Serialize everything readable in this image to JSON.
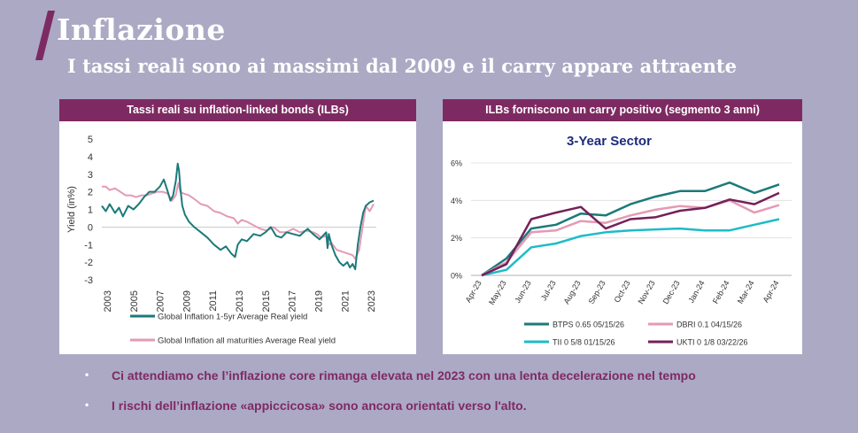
{
  "header": {
    "title": "Inflazione",
    "subtitle": "I tassi reali sono ai massimi dal 2009 e il carry appare attraente"
  },
  "colors": {
    "background": "#aca9c4",
    "accent": "#7e2a62",
    "teal": "#1b7a7a",
    "pink": "#e59ab5",
    "cyan": "#1cbcc8",
    "purple": "#74205a"
  },
  "left_panel": {
    "header": "Tassi reali su inflation-linked bonds (ILBs)"
  },
  "right_panel": {
    "header": "ILBs forniscono un carry positivo (segmento 3 anni)"
  },
  "chart_data": [
    {
      "type": "line",
      "title": "",
      "xlabel": "",
      "ylabel": "Yield (in%)",
      "xlim": [
        2003,
        2023.8
      ],
      "ylim": [
        -3,
        5
      ],
      "xticks": [
        "2003",
        "2005",
        "2007",
        "2009",
        "2011",
        "2013",
        "2015",
        "2017",
        "2019",
        "2021",
        "2023"
      ],
      "yticks": [
        "5",
        "4",
        "3",
        "2",
        "1",
        "0",
        "-1",
        "-2",
        "-3"
      ],
      "legend": "bottom",
      "series": [
        {
          "name": "Global Inflation 1-5yr Average Real yield",
          "color": "#1b7a7a",
          "x": [
            2003,
            2003.3,
            2003.6,
            2004,
            2004.3,
            2004.6,
            2005,
            2005.4,
            2005.8,
            2006.2,
            2006.6,
            2007,
            2007.4,
            2007.7,
            2008,
            2008.2,
            2008.4,
            2008.6,
            2008.75,
            2008.85,
            2008.95,
            2009.1,
            2009.3,
            2009.6,
            2010,
            2010.5,
            2011,
            2011.5,
            2012,
            2012.4,
            2012.8,
            2013.1,
            2013.3,
            2013.6,
            2014,
            2014.5,
            2015,
            2015.4,
            2015.8,
            2016.2,
            2016.6,
            2017,
            2017.5,
            2018,
            2018.3,
            2018.6,
            2019,
            2019.5,
            2020,
            2020.1,
            2020.2,
            2020.4,
            2020.7,
            2021,
            2021.3,
            2021.6,
            2021.8,
            2022,
            2022.2,
            2022.4,
            2022.6,
            2022.8,
            2023,
            2023.3,
            2023.6
          ],
          "y": [
            1.2,
            0.9,
            1.3,
            0.8,
            1.1,
            0.6,
            1.2,
            1.0,
            1.3,
            1.7,
            2.0,
            2.0,
            2.3,
            2.7,
            2.0,
            1.5,
            1.8,
            2.6,
            3.6,
            3.2,
            2.2,
            1.2,
            0.7,
            0.3,
            0.0,
            -0.3,
            -0.6,
            -1.0,
            -1.3,
            -1.1,
            -1.5,
            -1.7,
            -1.0,
            -0.7,
            -0.8,
            -0.4,
            -0.5,
            -0.3,
            0.0,
            -0.5,
            -0.6,
            -0.3,
            -0.4,
            -0.5,
            -0.3,
            -0.1,
            -0.4,
            -0.7,
            -0.3,
            -1.2,
            -0.4,
            -1.0,
            -1.6,
            -2.0,
            -2.2,
            -2.0,
            -2.3,
            -2.1,
            -2.4,
            -1.0,
            0.0,
            0.8,
            1.2,
            1.4,
            1.5
          ]
        },
        {
          "name": "Global Inflation all maturities Average Real yield",
          "color": "#e59ab5",
          "x": [
            2003,
            2003.3,
            2003.6,
            2004,
            2004.4,
            2004.8,
            2005.2,
            2005.6,
            2006,
            2006.4,
            2006.8,
            2007.2,
            2007.6,
            2008,
            2008.3,
            2008.6,
            2008.8,
            2008.95,
            2009.2,
            2009.6,
            2010,
            2010.5,
            2011,
            2011.5,
            2012,
            2012.5,
            2013,
            2013.3,
            2013.6,
            2014,
            2014.5,
            2015,
            2015.5,
            2016,
            2016.5,
            2017,
            2017.5,
            2018,
            2018.5,
            2019,
            2019.3,
            2019.6,
            2020,
            2020.2,
            2020.4,
            2020.8,
            2021.2,
            2021.6,
            2022,
            2022.2,
            2022.5,
            2022.8,
            2023,
            2023.3,
            2023.6
          ],
          "y": [
            2.3,
            2.3,
            2.1,
            2.2,
            2.0,
            1.8,
            1.8,
            1.7,
            1.8,
            1.8,
            1.9,
            2.0,
            2.0,
            1.9,
            1.5,
            1.8,
            2.5,
            2.0,
            1.9,
            1.8,
            1.6,
            1.3,
            1.2,
            0.9,
            0.8,
            0.6,
            0.5,
            0.2,
            0.4,
            0.3,
            0.1,
            -0.1,
            -0.2,
            0.0,
            -0.3,
            -0.3,
            -0.1,
            -0.3,
            -0.2,
            -0.3,
            -0.4,
            -0.6,
            -0.5,
            -1.0,
            -0.9,
            -1.3,
            -1.4,
            -1.5,
            -1.6,
            -1.8,
            -1.3,
            0.2,
            1.2,
            0.9,
            1.3
          ]
        }
      ]
    },
    {
      "type": "line",
      "title": "3-Year Sector",
      "xlabel": "",
      "ylabel": "",
      "ylim": [
        0,
        6
      ],
      "categories": [
        "Apr-23",
        "May-23",
        "Jun-23",
        "Jul-23",
        "Aug-23",
        "Sep-23",
        "Oct-23",
        "Nov-23",
        "Dec-23",
        "Jan-24",
        "Feb-24",
        "Mar-24",
        "Apr-24"
      ],
      "yticks": [
        "0%",
        "2%",
        "4%",
        "6%"
      ],
      "legend": "bottom",
      "series": [
        {
          "name": "BTPS 0.65 05/15/26",
          "color": "#1b7a7a",
          "values": [
            0,
            0.9,
            2.5,
            2.7,
            3.3,
            3.2,
            3.8,
            4.2,
            4.5,
            4.5,
            4.95,
            4.4,
            4.85
          ]
        },
        {
          "name": "DBRI 0.1 04/15/26",
          "color": "#e59ab5",
          "values": [
            0,
            0.7,
            2.3,
            2.4,
            2.9,
            2.8,
            3.2,
            3.5,
            3.7,
            3.6,
            4.0,
            3.35,
            3.75
          ]
        },
        {
          "name": "TII 0 5/8 01/15/26",
          "color": "#1cbcc8",
          "values": [
            0,
            0.3,
            1.5,
            1.7,
            2.1,
            2.3,
            2.4,
            2.45,
            2.5,
            2.4,
            2.4,
            2.7,
            3.0
          ]
        },
        {
          "name": "UKTI 0 1/8 03/22/26",
          "color": "#74205a",
          "values": [
            0,
            0.6,
            3.0,
            3.35,
            3.65,
            2.5,
            3.0,
            3.1,
            3.45,
            3.6,
            4.05,
            3.8,
            4.4
          ]
        }
      ]
    }
  ],
  "bullets": [
    {
      "marker": "•",
      "text": "Ci attendiamo che l’inflazione core rimanga elevata nel 2023 con una lenta decelerazione nel tempo"
    },
    {
      "marker": "•",
      "text": "I rischi dell’inflazione «appiccicosa» sono ancora orientati verso l'alto."
    }
  ]
}
